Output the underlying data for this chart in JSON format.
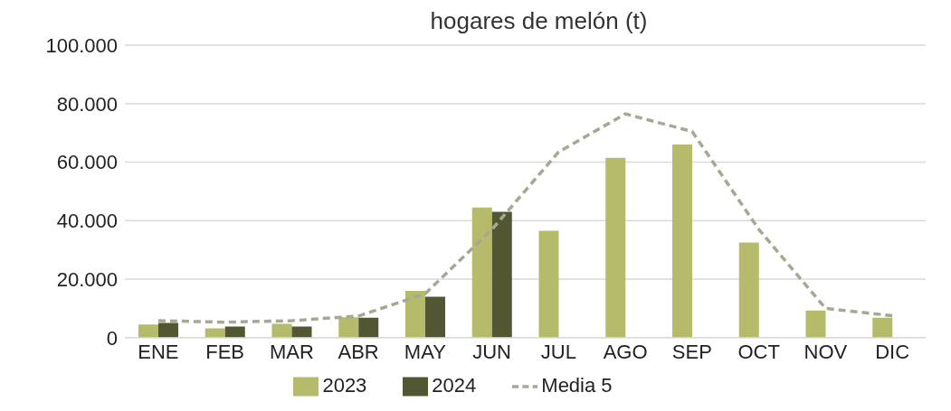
{
  "chart_data": {
    "type": "bar",
    "title": "hogares de melón (t)",
    "categories": [
      "ENE",
      "FEB",
      "MAR",
      "ABR",
      "MAY",
      "JUN",
      "JUL",
      "AGO",
      "SEP",
      "OCT",
      "NOV",
      "DIC"
    ],
    "series": [
      {
        "name": "2023",
        "color": "#b5bb6a",
        "values": [
          4500,
          3200,
          4700,
          7000,
          16000,
          44500,
          36500,
          61500,
          66000,
          32500,
          9300,
          6800
        ]
      },
      {
        "name": "2024",
        "color": "#525632",
        "values": [
          5000,
          3800,
          3800,
          6800,
          14000,
          43000,
          null,
          null,
          null,
          null,
          null,
          null
        ]
      },
      {
        "name": "Media 5",
        "type": "line",
        "line_style": "dashed",
        "marker": "none",
        "color": "#a5a893",
        "values": [
          5800,
          5300,
          5800,
          7400,
          15000,
          37000,
          63500,
          76500,
          70500,
          37000,
          10000,
          7500
        ]
      }
    ],
    "ylim": [
      0,
      100000
    ],
    "yticks": [
      {
        "value": 0,
        "label": "0"
      },
      {
        "value": 20000,
        "label": "20.000"
      },
      {
        "value": 40000,
        "label": "40.000"
      },
      {
        "value": 60000,
        "label": "60.000"
      },
      {
        "value": 80000,
        "label": "80.000"
      },
      {
        "value": 100000,
        "label": "100.000"
      }
    ],
    "grid": "y",
    "legend": "bottom"
  }
}
